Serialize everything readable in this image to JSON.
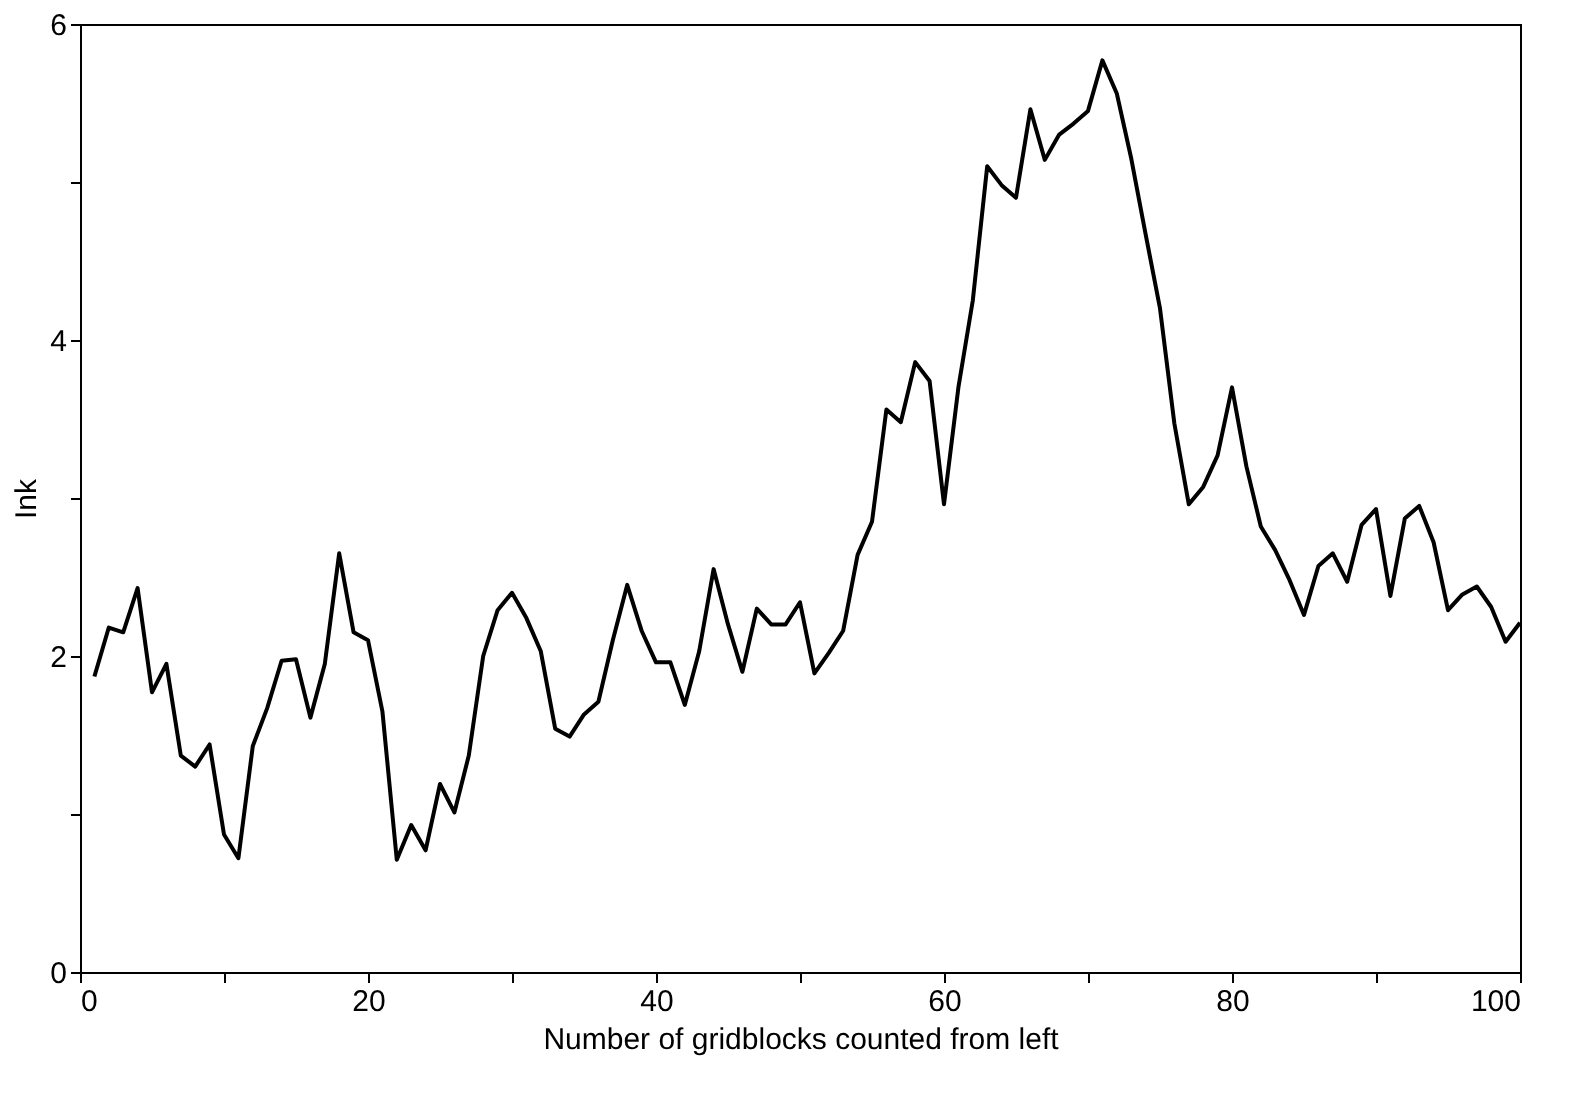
{
  "chart_data": {
    "type": "line",
    "xlabel": "Number of gridblocks counted from left",
    "ylabel": "Ink",
    "x": [
      1,
      2,
      3,
      4,
      5,
      6,
      7,
      8,
      9,
      10,
      11,
      12,
      13,
      14,
      15,
      16,
      17,
      18,
      19,
      20,
      21,
      22,
      23,
      24,
      25,
      26,
      27,
      28,
      29,
      30,
      31,
      32,
      33,
      34,
      35,
      36,
      37,
      38,
      39,
      40,
      41,
      42,
      43,
      44,
      45,
      46,
      47,
      48,
      49,
      50,
      51,
      52,
      53,
      54,
      55,
      56,
      57,
      58,
      59,
      60,
      61,
      62,
      63,
      64,
      65,
      66,
      67,
      68,
      69,
      70,
      71,
      72,
      73,
      74,
      75,
      76,
      77,
      78,
      79,
      80,
      81,
      82,
      83,
      84,
      85,
      86,
      87,
      88,
      89,
      90,
      91,
      92,
      93,
      94,
      95,
      96,
      97,
      98,
      99,
      100
    ],
    "series": [
      {
        "color": "#000000",
        "values": [
          1.87,
          2.18,
          2.15,
          2.43,
          1.77,
          1.95,
          1.37,
          1.3,
          1.44,
          0.87,
          0.72,
          1.43,
          1.67,
          1.97,
          1.98,
          1.61,
          1.95,
          2.65,
          2.15,
          2.1,
          1.65,
          0.71,
          0.93,
          0.77,
          1.19,
          1.01,
          1.37,
          2.0,
          2.29,
          2.4,
          2.24,
          2.03,
          1.54,
          1.49,
          1.63,
          1.71,
          2.1,
          2.45,
          2.16,
          1.96,
          1.96,
          1.69,
          2.03,
          2.55,
          2.2,
          1.9,
          2.3,
          2.2,
          2.2,
          2.34,
          1.89,
          2.02,
          2.16,
          2.64,
          2.85,
          3.56,
          3.48,
          3.86,
          3.74,
          2.96,
          3.7,
          4.25,
          5.1,
          4.98,
          4.9,
          5.46,
          5.14,
          5.3,
          5.37,
          5.45,
          5.77,
          5.56,
          5.15,
          4.67,
          4.2,
          3.47,
          2.96,
          3.07,
          3.27,
          3.7,
          3.2,
          2.82,
          2.67,
          2.48,
          2.26,
          2.57,
          2.65,
          2.47,
          2.83,
          2.93,
          2.38,
          2.87,
          2.95,
          2.72,
          2.29,
          2.39,
          2.44,
          2.31,
          2.09,
          2.21
        ]
      }
    ],
    "xlim": [
      0,
      100
    ],
    "ylim": [
      0,
      6
    ],
    "xticks": [
      0,
      {
        "value": 10,
        "label": null
      },
      20,
      {
        "value": 30,
        "label": null
      },
      40,
      {
        "value": 50,
        "label": null
      },
      60,
      {
        "value": 70,
        "label": null
      },
      80,
      {
        "value": 90,
        "label": null
      },
      100
    ],
    "yticks": [
      0,
      {
        "value": 1,
        "label": null
      },
      2,
      {
        "value": 3,
        "label": null
      },
      4,
      {
        "value": 5,
        "label": null
      },
      6
    ],
    "grid": false,
    "marker": "none",
    "line_style": "solid"
  }
}
